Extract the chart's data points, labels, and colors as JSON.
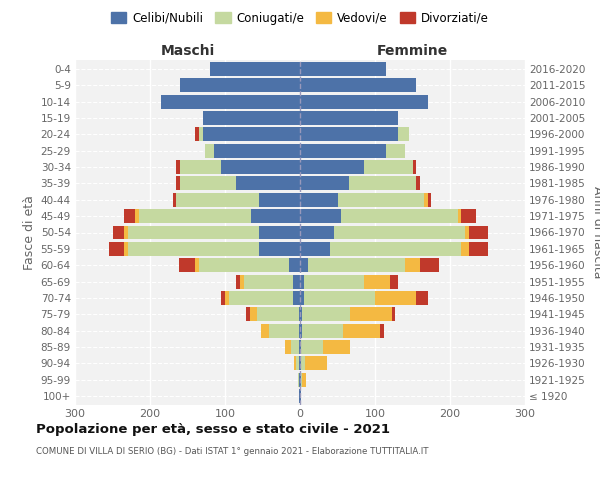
{
  "age_groups": [
    "100+",
    "95-99",
    "90-94",
    "85-89",
    "80-84",
    "75-79",
    "70-74",
    "65-69",
    "60-64",
    "55-59",
    "50-54",
    "45-49",
    "40-44",
    "35-39",
    "30-34",
    "25-29",
    "20-24",
    "15-19",
    "10-14",
    "5-9",
    "0-4"
  ],
  "birth_years": [
    "≤ 1920",
    "1921-1925",
    "1926-1930",
    "1931-1935",
    "1936-1940",
    "1941-1945",
    "1946-1950",
    "1951-1955",
    "1956-1960",
    "1961-1965",
    "1966-1970",
    "1971-1975",
    "1976-1980",
    "1981-1985",
    "1986-1990",
    "1991-1995",
    "1996-2000",
    "2001-2005",
    "2006-2010",
    "2011-2015",
    "2016-2020"
  ],
  "maschi": {
    "celibi": [
      1,
      1,
      1,
      2,
      2,
      2,
      10,
      10,
      15,
      55,
      55,
      65,
      55,
      85,
      105,
      115,
      130,
      130,
      185,
      160,
      120
    ],
    "coniugati": [
      0,
      2,
      5,
      10,
      40,
      55,
      85,
      65,
      120,
      175,
      175,
      150,
      110,
      75,
      55,
      12,
      5,
      0,
      0,
      0,
      0
    ],
    "vedovi": [
      0,
      0,
      2,
      8,
      10,
      10,
      5,
      5,
      5,
      5,
      5,
      5,
      0,
      0,
      0,
      0,
      0,
      0,
      0,
      0,
      0
    ],
    "divorziati": [
      0,
      0,
      0,
      0,
      0,
      5,
      5,
      5,
      22,
      20,
      15,
      15,
      5,
      5,
      5,
      0,
      5,
      0,
      0,
      0,
      0
    ]
  },
  "femmine": {
    "nubili": [
      1,
      1,
      1,
      1,
      2,
      2,
      5,
      5,
      10,
      40,
      45,
      55,
      50,
      65,
      85,
      115,
      130,
      130,
      170,
      155,
      115
    ],
    "coniugate": [
      0,
      2,
      5,
      30,
      55,
      65,
      95,
      80,
      130,
      175,
      175,
      155,
      115,
      90,
      65,
      25,
      15,
      0,
      0,
      0,
      0
    ],
    "vedove": [
      0,
      5,
      30,
      35,
      50,
      55,
      55,
      35,
      20,
      10,
      5,
      5,
      5,
      0,
      0,
      0,
      0,
      0,
      0,
      0,
      0
    ],
    "divorziate": [
      0,
      0,
      0,
      0,
      5,
      5,
      15,
      10,
      25,
      25,
      25,
      20,
      5,
      5,
      5,
      0,
      0,
      0,
      0,
      0,
      0
    ]
  },
  "colors": {
    "celibi": "#4D72A8",
    "coniugati": "#C5D9A0",
    "vedovi": "#F4B942",
    "divorziati": "#C0392B"
  },
  "legend_labels": [
    "Celibi/Nubili",
    "Coniugati/e",
    "Vedovi/e",
    "Divorziati/e"
  ],
  "title": "Popolazione per età, sesso e stato civile - 2021",
  "subtitle": "COMUNE DI VILLA DI SERIO (BG) - Dati ISTAT 1° gennaio 2021 - Elaborazione TUTTITALIA.IT",
  "xlabel_left": "Maschi",
  "xlabel_right": "Femmine",
  "ylabel_left": "Fasce di età",
  "ylabel_right": "Anni di nascita",
  "xlim": 300,
  "bg_color": "#FFFFFF",
  "plot_bg": "#F2F2F2"
}
